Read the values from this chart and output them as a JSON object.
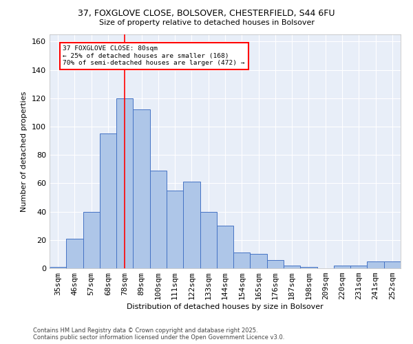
{
  "title_line1": "37, FOXGLOVE CLOSE, BOLSOVER, CHESTERFIELD, S44 6FU",
  "title_line2": "Size of property relative to detached houses in Bolsover",
  "xlabel": "Distribution of detached houses by size in Bolsover",
  "ylabel": "Number of detached properties",
  "bar_labels": [
    "35sqm",
    "46sqm",
    "57sqm",
    "68sqm",
    "78sqm",
    "89sqm",
    "100sqm",
    "111sqm",
    "122sqm",
    "133sqm",
    "144sqm",
    "154sqm",
    "165sqm",
    "176sqm",
    "187sqm",
    "198sqm",
    "209sqm",
    "220sqm",
    "231sqm",
    "241sqm",
    "252sqm"
  ],
  "bar_values": [
    1,
    21,
    40,
    95,
    120,
    112,
    69,
    55,
    61,
    40,
    30,
    11,
    10,
    6,
    2,
    1,
    0,
    2,
    2,
    5,
    5
  ],
  "bar_color": "#aec6e8",
  "bar_edge_color": "#4472c4",
  "background_color": "#e8eef8",
  "grid_color": "#ffffff",
  "red_line_x": 4,
  "annotation_text": "37 FOXGLOVE CLOSE: 80sqm\n← 25% of detached houses are smaller (168)\n70% of semi-detached houses are larger (472) →",
  "annotation_box_color": "white",
  "annotation_box_edge_color": "red",
  "ylim": [
    0,
    165
  ],
  "footer_line1": "Contains HM Land Registry data © Crown copyright and database right 2025.",
  "footer_line2": "Contains public sector information licensed under the Open Government Licence v3.0.",
  "yticks": [
    0,
    20,
    40,
    60,
    80,
    100,
    120,
    140,
    160
  ]
}
